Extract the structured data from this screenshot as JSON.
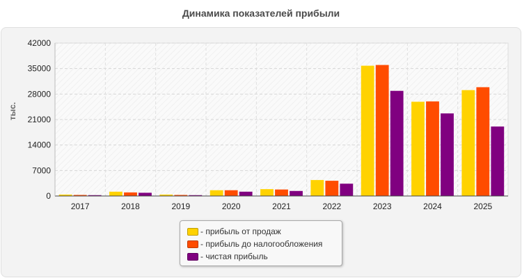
{
  "page": {
    "title": "Динамика показателей прибыли"
  },
  "colors": {
    "sales_profit": "#ffd200",
    "pretax_profit": "#ff4c00",
    "net_profit": "#800080"
  },
  "chart_data": {
    "type": "bar",
    "title": "Динамика показателей прибыли",
    "xlabel": "",
    "ylabel": "тыс.",
    "ylim": [
      0,
      42000
    ],
    "yticks": [
      "0",
      "7000",
      "14000",
      "21000",
      "28000",
      "35000",
      "42000"
    ],
    "grid": true,
    "legend_position": "bottom",
    "categories": [
      "2017",
      "2018",
      "2019",
      "2020",
      "2021",
      "2022",
      "2023",
      "2024",
      "2025"
    ],
    "series": [
      {
        "name": "- прибыль от продаж",
        "color": "#ffd200",
        "values": [
          400,
          1200,
          400,
          1600,
          1900,
          4400,
          35800,
          25900,
          29100
        ]
      },
      {
        "name": "- прибыль до налогообложения",
        "color": "#ff4c00",
        "values": [
          300,
          1000,
          300,
          1600,
          1800,
          4200,
          36000,
          26000,
          29900
        ]
      },
      {
        "name": "- чистая прибыль",
        "color": "#800080",
        "values": [
          250,
          900,
          250,
          1200,
          1400,
          3400,
          28900,
          22700,
          19100
        ]
      }
    ]
  }
}
